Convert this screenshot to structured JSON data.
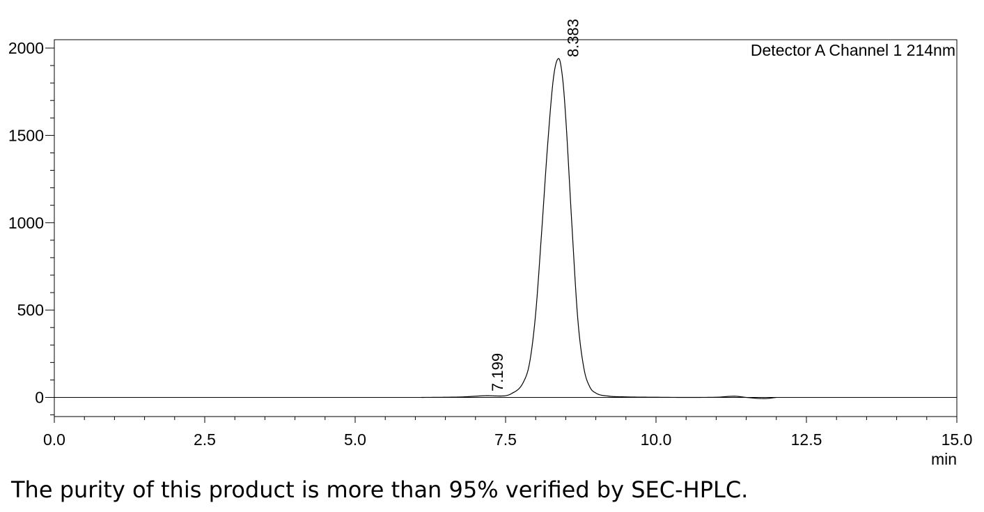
{
  "chart_data": {
    "type": "line",
    "title": "",
    "xlabel": "min",
    "ylabel": "",
    "xlim": [
      0.0,
      15.0
    ],
    "ylim": [
      -110,
      2050
    ],
    "x_ticks": [
      "0.0",
      "2.5",
      "5.0",
      "7.5",
      "10.0",
      "12.5",
      "15.0"
    ],
    "y_ticks": [
      "0",
      "500",
      "1000",
      "1500",
      "2000"
    ],
    "legend": "Detector A Channel 1 214nm",
    "legend_position": "top-right",
    "grid": false,
    "baseline": 0,
    "series": [
      {
        "name": "Detector A Channel 1 214nm",
        "x": [
          6.1,
          6.5,
          6.8,
          7.0,
          7.199,
          7.4,
          7.6,
          7.8,
          7.9,
          8.0,
          8.1,
          8.2,
          8.3,
          8.383,
          8.45,
          8.5,
          8.6,
          8.7,
          8.8,
          8.9,
          9.0,
          9.2,
          9.5,
          10.0,
          10.5,
          11.0,
          11.3,
          11.5,
          11.8,
          12.0
        ],
        "y": [
          0,
          1,
          3,
          7,
          10,
          8,
          22,
          90,
          200,
          480,
          950,
          1450,
          1840,
          1940,
          1820,
          1600,
          1000,
          450,
          170,
          60,
          25,
          8,
          3,
          1,
          0,
          1,
          7,
          0,
          -7,
          0
        ]
      }
    ],
    "peak_labels": [
      {
        "x": 7.199,
        "y": 10,
        "label": "7.199"
      },
      {
        "x": 8.383,
        "y": 1940,
        "label": "8.383"
      }
    ]
  },
  "caption": "The purity of this product is more than 95% verified by SEC-HPLC."
}
